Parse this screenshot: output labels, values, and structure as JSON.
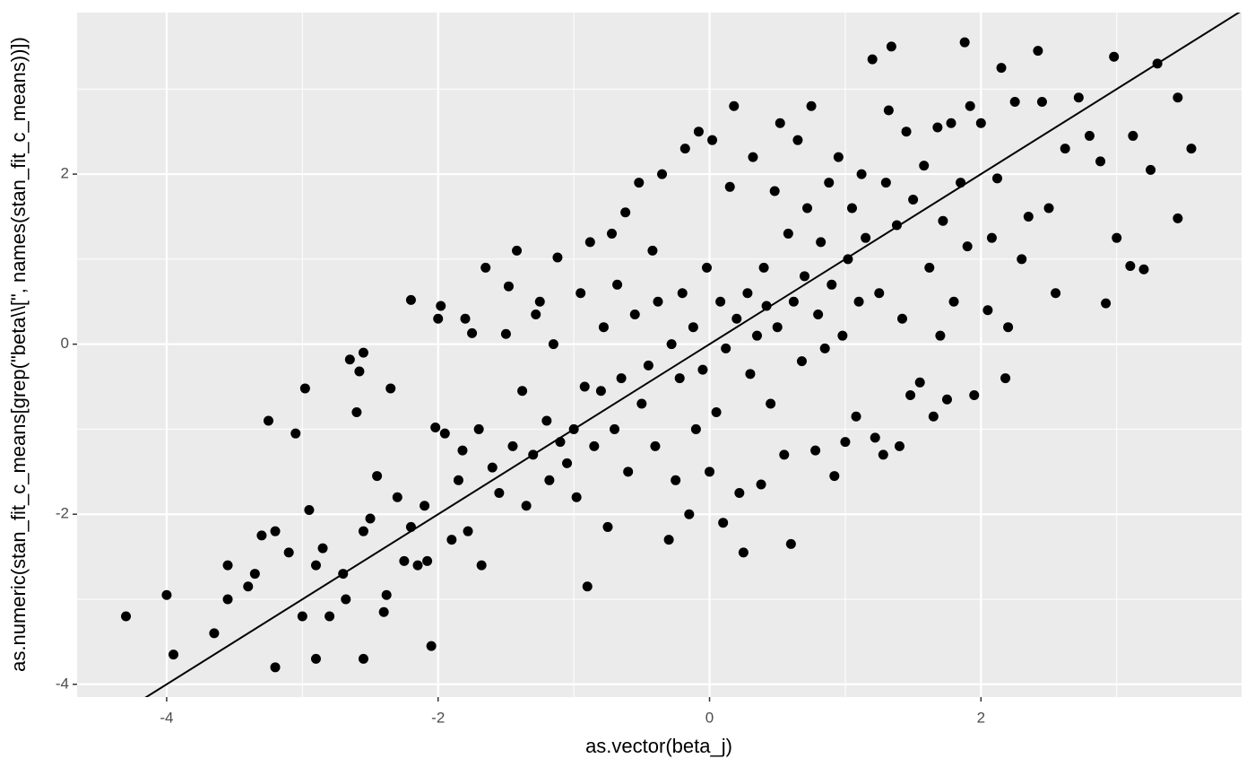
{
  "chart_data": {
    "type": "scatter",
    "x_label": "as.vector(beta_j)",
    "y_label": "as.numeric(stan_fit_c_means[grep(\"beta\\\\[\", names(stan_fit_c_means))])",
    "xlim": [
      -4.66,
      3.92
    ],
    "ylim": [
      -4.15,
      3.9
    ],
    "xticks": [
      -4,
      -2,
      0,
      2
    ],
    "yticks": [
      -4,
      -2,
      0,
      2
    ],
    "x_minor": [
      -3,
      -1,
      1,
      3
    ],
    "y_minor": [
      -3,
      -1,
      1,
      3
    ],
    "grid": true,
    "color": "#000000",
    "abline": {
      "intercept": 0,
      "slope": 1
    },
    "x": [
      -4.3,
      -4.0,
      -3.95,
      -3.65,
      -3.55,
      -3.55,
      -3.4,
      -3.35,
      -3.3,
      -3.25,
      -3.2,
      -3.2,
      -3.1,
      -3.05,
      -3.0,
      -2.98,
      -2.95,
      -2.9,
      -2.9,
      -2.85,
      -2.8,
      -2.7,
      -2.68,
      -2.65,
      -2.6,
      -2.58,
      -2.55,
      -2.55,
      -2.55,
      -2.5,
      -2.45,
      -2.4,
      -2.38,
      -2.35,
      -2.3,
      -2.25,
      -2.2,
      -2.15,
      -2.2,
      -2.1,
      -2.08,
      -2.05,
      -2.02,
      -2.0,
      -1.98,
      -1.95,
      -1.9,
      -1.85,
      -1.82,
      -1.8,
      -1.78,
      -1.75,
      -1.7,
      -1.68,
      -1.65,
      -1.6,
      -1.55,
      -1.5,
      -1.48,
      -1.45,
      -1.42,
      -1.38,
      -1.35,
      -1.3,
      -1.28,
      -1.25,
      -1.2,
      -1.18,
      -1.15,
      -1.12,
      -1.1,
      -1.05,
      -1.0,
      -0.98,
      -0.95,
      -0.92,
      -0.9,
      -0.88,
      -0.85,
      -0.8,
      -0.78,
      -0.75,
      -0.72,
      -0.7,
      -0.68,
      -0.65,
      -0.62,
      -0.6,
      -0.55,
      -0.52,
      -0.5,
      -0.45,
      -0.42,
      -0.4,
      -0.38,
      -0.35,
      -0.3,
      -0.28,
      -0.25,
      -0.22,
      -0.2,
      -0.18,
      -0.15,
      -0.12,
      -0.1,
      -0.08,
      -0.05,
      -0.02,
      0.0,
      0.02,
      0.05,
      0.08,
      0.1,
      0.12,
      0.15,
      0.18,
      0.2,
      0.22,
      0.25,
      0.28,
      0.3,
      0.32,
      0.35,
      0.38,
      0.4,
      0.42,
      0.45,
      0.48,
      0.5,
      0.52,
      0.55,
      0.58,
      0.6,
      0.62,
      0.65,
      0.68,
      0.7,
      0.72,
      0.75,
      0.78,
      0.8,
      0.82,
      0.85,
      0.88,
      0.9,
      0.92,
      0.95,
      0.98,
      1.0,
      1.02,
      1.05,
      1.08,
      1.1,
      1.12,
      1.15,
      1.2,
      1.22,
      1.25,
      1.28,
      1.3,
      1.32,
      1.34,
      1.38,
      1.4,
      1.42,
      1.45,
      1.48,
      1.5,
      1.55,
      1.58,
      1.62,
      1.65,
      1.68,
      1.7,
      1.72,
      1.75,
      1.78,
      1.8,
      1.85,
      1.88,
      1.9,
      1.92,
      1.95,
      2.0,
      2.05,
      2.08,
      2.12,
      2.15,
      2.18,
      2.2,
      2.25,
      2.3,
      2.35,
      2.42,
      2.45,
      2.5,
      2.55,
      2.62,
      2.72,
      2.8,
      2.88,
      2.92,
      2.98,
      3.0,
      3.1,
      3.12,
      3.2,
      3.25,
      3.3,
      3.45,
      3.45,
      3.55
    ],
    "y": [
      -3.2,
      -2.95,
      -3.65,
      -3.4,
      -2.6,
      -3.0,
      -2.85,
      -2.7,
      -2.25,
      -0.9,
      -3.8,
      -2.2,
      -2.45,
      -1.05,
      -3.2,
      -0.52,
      -1.95,
      -3.7,
      -2.6,
      -2.4,
      -3.2,
      -2.7,
      -3.0,
      -0.18,
      -0.8,
      -0.32,
      -0.1,
      -3.7,
      -2.2,
      -2.05,
      -1.55,
      -3.15,
      -2.95,
      -0.52,
      -1.8,
      -2.55,
      -2.15,
      -2.6,
      0.52,
      -1.9,
      -2.55,
      -3.55,
      -0.98,
      0.3,
      0.45,
      -1.05,
      -2.3,
      -1.6,
      -1.25,
      0.3,
      -2.2,
      0.13,
      -1.0,
      -2.6,
      0.9,
      -1.45,
      -1.75,
      0.12,
      0.68,
      -1.2,
      1.1,
      -0.55,
      -1.9,
      -1.3,
      0.35,
      0.5,
      -0.9,
      -1.6,
      0.0,
      1.02,
      -1.15,
      -1.4,
      -1.0,
      -1.8,
      0.6,
      -0.5,
      -2.85,
      1.2,
      -1.2,
      -0.55,
      0.2,
      -2.15,
      1.3,
      -1.0,
      0.7,
      -0.4,
      1.55,
      -1.5,
      0.35,
      1.9,
      -0.7,
      -0.25,
      1.1,
      -1.2,
      0.5,
      2.0,
      -2.3,
      0.0,
      -1.6,
      -0.4,
      0.6,
      2.3,
      -2.0,
      0.2,
      -1.0,
      2.5,
      -0.3,
      0.9,
      -1.5,
      2.4,
      -0.8,
      0.5,
      -2.1,
      -0.05,
      1.85,
      2.8,
      0.3,
      -1.75,
      -2.45,
      0.6,
      -0.35,
      2.2,
      0.1,
      -1.65,
      0.9,
      0.45,
      -0.7,
      1.8,
      0.2,
      2.6,
      -1.3,
      1.3,
      -2.35,
      0.5,
      2.4,
      -0.2,
      0.8,
      1.6,
      2.8,
      -1.25,
      0.35,
      1.2,
      -0.05,
      1.9,
      0.7,
      -1.55,
      2.2,
      0.1,
      -1.15,
      1.0,
      1.6,
      -0.85,
      0.5,
      2.0,
      1.25,
      3.35,
      -1.1,
      0.6,
      -1.3,
      1.9,
      2.75,
      3.5,
      1.4,
      -1.2,
      0.3,
      2.5,
      -0.6,
      1.7,
      -0.45,
      2.1,
      0.9,
      -0.85,
      2.55,
      0.1,
      1.45,
      -0.65,
      2.6,
      0.5,
      1.9,
      3.55,
      1.15,
      2.8,
      -0.6,
      2.6,
      0.4,
      1.25,
      1.95,
      3.25,
      -0.4,
      0.2,
      2.85,
      1.0,
      1.5,
      3.45,
      2.85,
      1.6,
      0.6,
      2.3,
      2.9,
      2.45,
      2.15,
      0.48,
      3.38,
      1.25,
      0.92,
      2.45,
      0.88,
      2.05,
      3.3,
      2.9,
      1.48,
      2.3
    ]
  }
}
